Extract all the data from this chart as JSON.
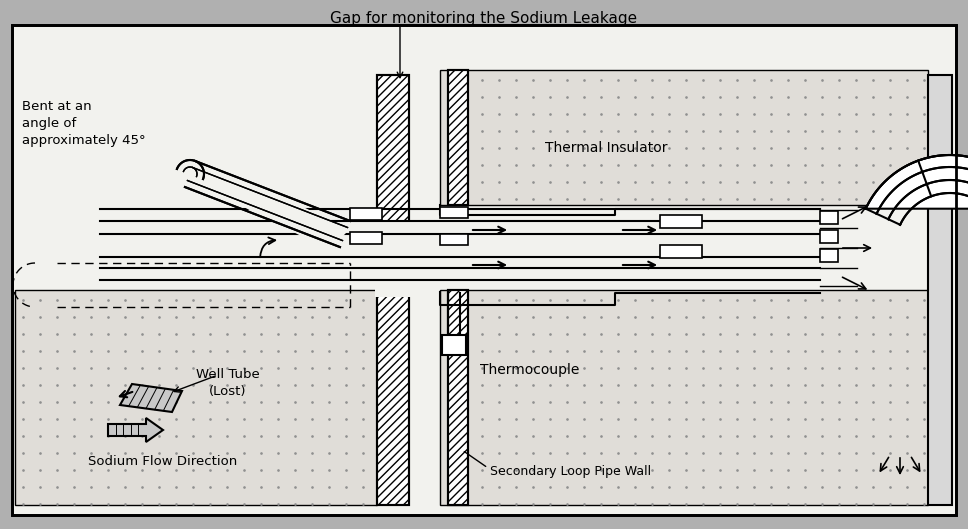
{
  "title": "Gap for monitoring the Sodium Leakage",
  "labels": {
    "bent": "Bent at an\nangle of\napproximately 45°",
    "thermal": "Thermal Insulator",
    "thermocouple": "Thermocouple",
    "secondary": "Secondary Loop Pipe Wall",
    "well_tube": "Well Tube\n(Lost)",
    "sodium_flow": "Sodium Flow Direction"
  },
  "colors": {
    "outer_bg": "#b0b0b0",
    "inner_bg": "#f2f2ee",
    "dotted_bg": "#e0ddd8",
    "white": "#ffffff",
    "hatch_fill": "#ffffff",
    "black": "#000000"
  }
}
